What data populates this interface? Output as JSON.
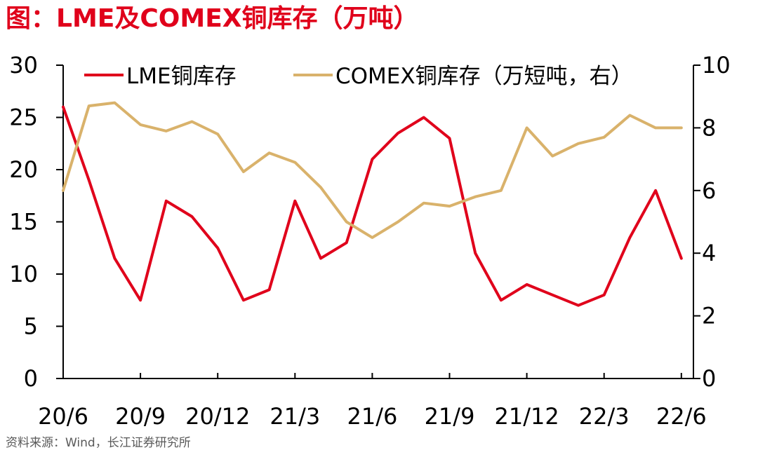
{
  "title": "图：LME及COMEX铜库存（万吨）",
  "source": "资料来源：Wind，长江证券研究所",
  "chart_data": {
    "type": "line",
    "x_tick_labels": [
      "20/6",
      "20/9",
      "20/12",
      "21/3",
      "21/6",
      "21/9",
      "21/12",
      "22/3",
      "22/6"
    ],
    "y_left": {
      "ticks": [
        0,
        5,
        10,
        15,
        20,
        25,
        30
      ],
      "range": [
        0,
        30
      ]
    },
    "y_right": {
      "ticks": [
        0,
        2,
        4,
        6,
        8,
        10
      ],
      "range": [
        0,
        10
      ]
    },
    "legend_position": "top",
    "grid": false,
    "series": [
      {
        "name": "LME铜库存",
        "axis": "left",
        "color": "#E0001B",
        "x": [
          "20/6",
          "20/7",
          "20/8",
          "20/9",
          "20/10",
          "20/11",
          "20/12",
          "21/1",
          "21/2",
          "21/3",
          "21/4",
          "21/5",
          "21/6",
          "21/7",
          "21/8",
          "21/9",
          "21/10",
          "21/11",
          "21/12",
          "22/1",
          "22/2",
          "22/3",
          "22/4",
          "22/5",
          "22/6"
        ],
        "values": [
          26.0,
          19.0,
          11.5,
          7.5,
          17.0,
          15.5,
          12.5,
          7.5,
          8.5,
          17.0,
          11.5,
          13.0,
          21.0,
          23.5,
          25.0,
          23.0,
          12.0,
          7.5,
          9.0,
          8.0,
          7.0,
          8.0,
          13.5,
          18.0,
          11.5
        ]
      },
      {
        "name": "COMEX铜库存（万短吨，右）",
        "axis": "right",
        "color": "#D9B26B",
        "x": [
          "20/6",
          "20/7",
          "20/8",
          "20/9",
          "20/10",
          "20/11",
          "20/12",
          "21/1",
          "21/2",
          "21/3",
          "21/4",
          "21/5",
          "21/6",
          "21/7",
          "21/8",
          "21/9",
          "21/10",
          "21/11",
          "21/12",
          "22/1",
          "22/2",
          "22/3",
          "22/4",
          "22/5",
          "22/6"
        ],
        "values": [
          6.0,
          8.7,
          8.8,
          8.1,
          7.9,
          8.2,
          7.8,
          6.6,
          7.2,
          6.9,
          6.1,
          5.0,
          4.5,
          5.0,
          5.6,
          5.5,
          5.8,
          6.0,
          8.0,
          7.1,
          7.5,
          7.7,
          8.4,
          8.0,
          8.0
        ]
      }
    ]
  }
}
